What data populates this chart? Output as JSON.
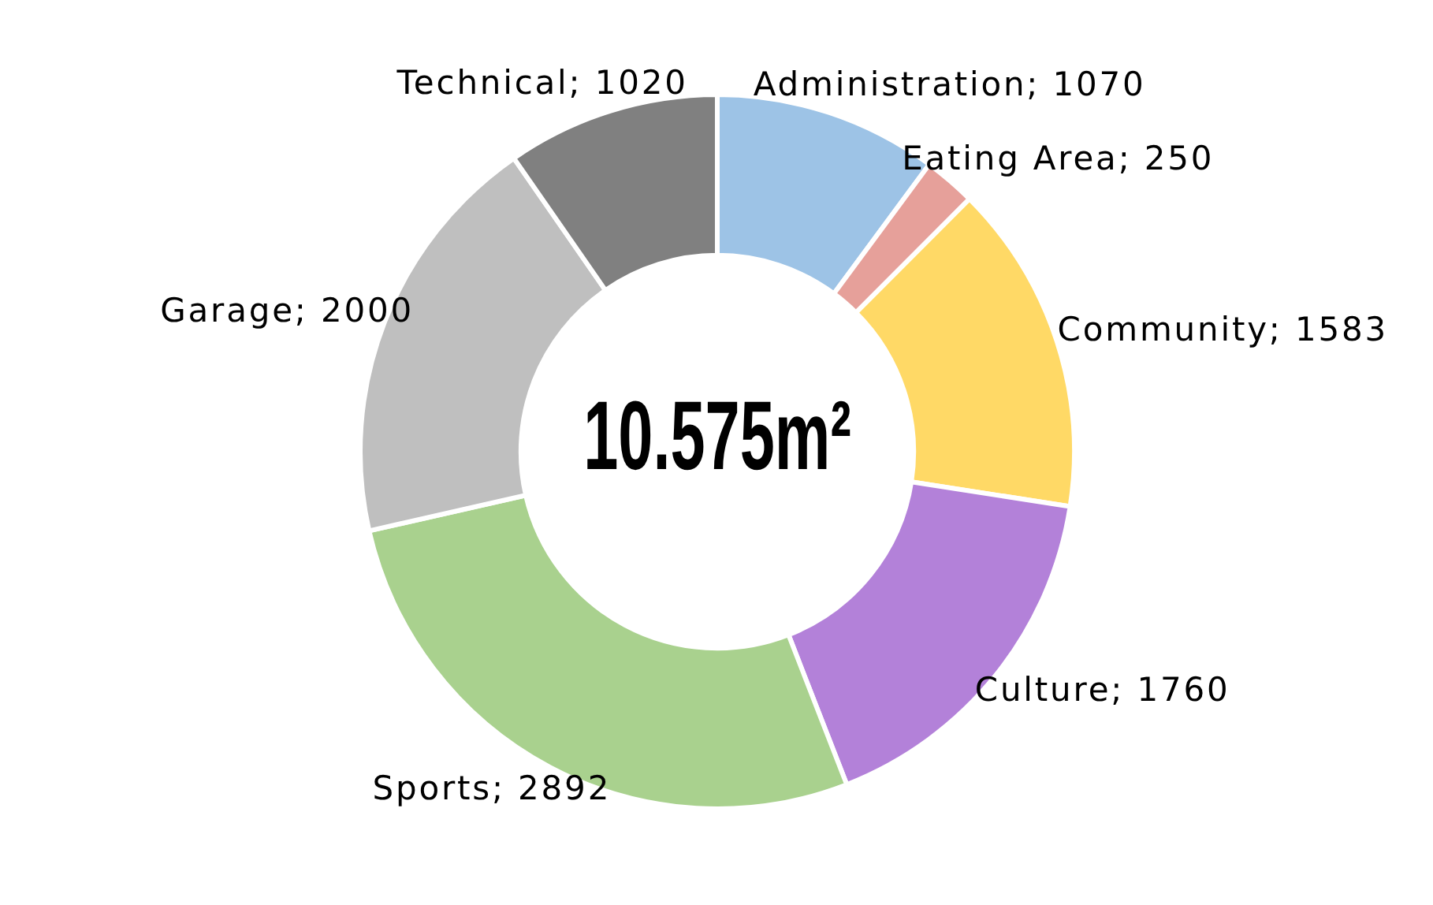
{
  "chart_data": {
    "type": "donut",
    "categories": [
      "Administration",
      "Eating Area",
      "Community",
      "Culture",
      "Sports",
      "Garage",
      "Technical"
    ],
    "values": [
      1070,
      250,
      1583,
      1760,
      2892,
      2000,
      1020
    ],
    "value_labels": [
      "; 1070",
      "; 250",
      "; 1583",
      "; 1760",
      "; 2892",
      "; 2000",
      "; 1020"
    ],
    "colors": [
      "#9dc3e6",
      "#e6a09a",
      "#ffd966",
      "#b381d9",
      "#a9d18e",
      "#bfbfbf",
      "#808080"
    ],
    "annotations": [
      "10.575m²"
    ],
    "legend": false
  }
}
